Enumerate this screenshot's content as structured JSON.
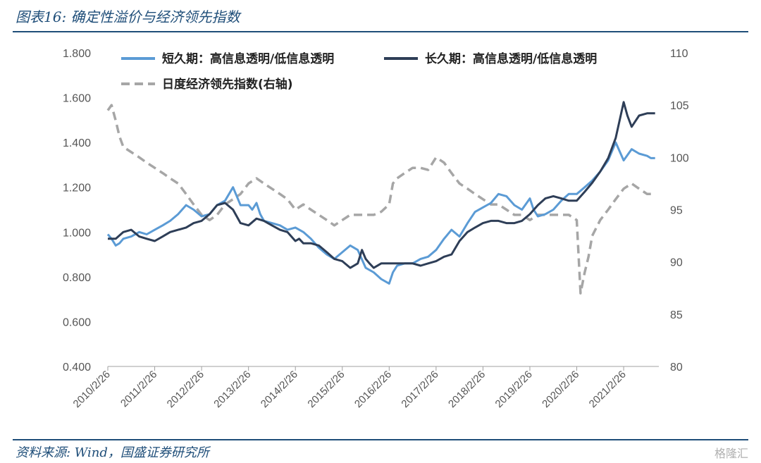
{
  "title": "图表16: 确定性溢价与经济领先指数",
  "source": "资料来源: Wind，国盛证券研究所",
  "watermark": "格隆汇",
  "chart_data": {
    "type": "line",
    "y_left": {
      "min": 0.4,
      "max": 1.8,
      "ticks": [
        "0.400",
        "0.600",
        "0.800",
        "1.000",
        "1.200",
        "1.400",
        "1.600",
        "1.800"
      ]
    },
    "y_right": {
      "min": 80,
      "max": 110,
      "ticks": [
        "80",
        "85",
        "90",
        "95",
        "100",
        "105",
        "110"
      ]
    },
    "x_ticks": [
      "2010/2/26",
      "2011/2/26",
      "2012/2/26",
      "2013/2/26",
      "2014/2/26",
      "2015/2/26",
      "2016/2/26",
      "2017/2/26",
      "2018/2/26",
      "2019/2/26",
      "2020/2/26",
      "2021/2/26"
    ],
    "x_range": [
      2010.0,
      2021.75
    ],
    "grid": false,
    "legend_position": "top",
    "series": [
      {
        "name": "短久期：高信息透明/低信息透明",
        "axis": "left",
        "color": "#5b9bd5",
        "style": "solid",
        "x": [
          2010.0,
          2010.08,
          2010.17,
          2010.25,
          2010.33,
          2010.5,
          2010.67,
          2010.83,
          2011.0,
          2011.17,
          2011.33,
          2011.5,
          2011.67,
          2011.83,
          2012.0,
          2012.17,
          2012.33,
          2012.5,
          2012.67,
          2012.83,
          2013.0,
          2013.08,
          2013.17,
          2013.25,
          2013.33,
          2013.5,
          2013.67,
          2013.83,
          2014.0,
          2014.17,
          2014.33,
          2014.5,
          2014.67,
          2014.83,
          2015.0,
          2015.17,
          2015.33,
          2015.5,
          2015.67,
          2015.83,
          2016.0,
          2016.08,
          2016.17,
          2016.33,
          2016.5,
          2016.67,
          2016.83,
          2017.0,
          2017.17,
          2017.33,
          2017.5,
          2017.67,
          2017.83,
          2018.0,
          2018.17,
          2018.33,
          2018.5,
          2018.67,
          2018.83,
          2019.0,
          2019.08,
          2019.17,
          2019.33,
          2019.5,
          2019.67,
          2019.83,
          2020.0,
          2020.17,
          2020.33,
          2020.5,
          2020.67,
          2020.83,
          2021.0,
          2021.17,
          2021.33,
          2021.5,
          2021.58,
          2021.67
        ],
        "values": [
          0.99,
          0.97,
          0.94,
          0.95,
          0.97,
          0.98,
          1.0,
          0.99,
          1.01,
          1.03,
          1.05,
          1.08,
          1.12,
          1.1,
          1.07,
          1.08,
          1.12,
          1.14,
          1.2,
          1.12,
          1.12,
          1.1,
          1.13,
          1.08,
          1.05,
          1.04,
          1.03,
          1.01,
          1.02,
          1.0,
          0.97,
          0.93,
          0.9,
          0.88,
          0.91,
          0.94,
          0.92,
          0.84,
          0.82,
          0.79,
          0.77,
          0.82,
          0.85,
          0.86,
          0.86,
          0.88,
          0.89,
          0.92,
          0.97,
          1.01,
          0.98,
          1.04,
          1.09,
          1.11,
          1.13,
          1.17,
          1.16,
          1.12,
          1.1,
          1.15,
          1.1,
          1.07,
          1.08,
          1.1,
          1.14,
          1.17,
          1.17,
          1.2,
          1.23,
          1.27,
          1.32,
          1.4,
          1.32,
          1.37,
          1.35,
          1.34,
          1.33,
          1.33
        ]
      },
      {
        "name": "长久期：高信息透明/低信息透明",
        "axis": "left",
        "color": "#2e3e57",
        "style": "solid",
        "x": [
          2010.0,
          2010.17,
          2010.33,
          2010.5,
          2010.67,
          2010.83,
          2011.0,
          2011.17,
          2011.33,
          2011.5,
          2011.67,
          2011.83,
          2012.0,
          2012.17,
          2012.33,
          2012.5,
          2012.67,
          2012.83,
          2013.0,
          2013.17,
          2013.33,
          2013.5,
          2013.67,
          2013.83,
          2014.0,
          2014.08,
          2014.17,
          2014.33,
          2014.5,
          2014.67,
          2014.83,
          2015.0,
          2015.17,
          2015.33,
          2015.42,
          2015.5,
          2015.58,
          2015.67,
          2015.83,
          2016.0,
          2016.17,
          2016.33,
          2016.5,
          2016.67,
          2016.83,
          2017.0,
          2017.17,
          2017.33,
          2017.5,
          2017.67,
          2017.83,
          2018.0,
          2018.17,
          2018.33,
          2018.5,
          2018.67,
          2018.83,
          2019.0,
          2019.17,
          2019.33,
          2019.5,
          2019.67,
          2019.83,
          2020.0,
          2020.17,
          2020.33,
          2020.5,
          2020.67,
          2020.83,
          2021.0,
          2021.08,
          2021.17,
          2021.33,
          2021.5,
          2021.58,
          2021.67
        ],
        "values": [
          0.97,
          0.97,
          1.0,
          1.01,
          0.98,
          0.97,
          0.96,
          0.98,
          1.0,
          1.01,
          1.02,
          1.04,
          1.05,
          1.08,
          1.12,
          1.13,
          1.1,
          1.04,
          1.03,
          1.06,
          1.05,
          1.03,
          1.01,
          1.0,
          0.96,
          0.97,
          0.95,
          0.95,
          0.94,
          0.91,
          0.88,
          0.87,
          0.84,
          0.86,
          0.92,
          0.88,
          0.86,
          0.84,
          0.86,
          0.86,
          0.86,
          0.86,
          0.86,
          0.85,
          0.86,
          0.87,
          0.89,
          0.9,
          0.96,
          1.0,
          1.02,
          1.04,
          1.05,
          1.05,
          1.04,
          1.04,
          1.05,
          1.08,
          1.12,
          1.15,
          1.16,
          1.15,
          1.14,
          1.14,
          1.18,
          1.22,
          1.27,
          1.33,
          1.42,
          1.58,
          1.52,
          1.47,
          1.52,
          1.53,
          1.53,
          1.53
        ]
      },
      {
        "name": "日度经济领先指数(右轴)",
        "axis": "right",
        "color": "#a6a6a6",
        "style": "dashed",
        "x": [
          2010.0,
          2010.08,
          2010.17,
          2010.25,
          2010.33,
          2010.5,
          2010.67,
          2010.83,
          2011.0,
          2011.17,
          2011.33,
          2011.5,
          2011.67,
          2011.83,
          2012.0,
          2012.17,
          2012.33,
          2012.5,
          2012.67,
          2012.83,
          2013.0,
          2013.17,
          2013.33,
          2013.5,
          2013.67,
          2013.83,
          2014.0,
          2014.17,
          2014.33,
          2014.5,
          2014.67,
          2014.83,
          2015.0,
          2015.17,
          2015.33,
          2015.5,
          2015.67,
          2015.83,
          2016.0,
          2016.08,
          2016.17,
          2016.33,
          2016.5,
          2016.67,
          2016.83,
          2017.0,
          2017.17,
          2017.33,
          2017.5,
          2017.67,
          2017.83,
          2018.0,
          2018.17,
          2018.33,
          2018.5,
          2018.67,
          2018.83,
          2019.0,
          2019.17,
          2019.33,
          2019.5,
          2019.67,
          2019.83,
          2020.0,
          2020.08,
          2020.17,
          2020.25,
          2020.33,
          2020.5,
          2020.67,
          2020.83,
          2021.0,
          2021.17,
          2021.33,
          2021.5,
          2021.67
        ],
        "values": [
          104.5,
          105.0,
          103.5,
          102.0,
          101.0,
          100.5,
          100.0,
          99.5,
          99.0,
          98.5,
          98.0,
          97.5,
          96.5,
          95.5,
          94.5,
          94.0,
          94.5,
          95.5,
          96.0,
          96.5,
          97.5,
          98.0,
          97.5,
          97.0,
          96.5,
          96.0,
          95.0,
          95.5,
          95.0,
          94.5,
          94.0,
          93.5,
          94.0,
          94.5,
          94.5,
          94.5,
          94.5,
          94.8,
          95.5,
          97.5,
          98.0,
          98.5,
          99.0,
          99.0,
          98.8,
          100.0,
          99.5,
          98.5,
          97.5,
          97.0,
          96.5,
          96.0,
          95.5,
          95.5,
          95.0,
          94.5,
          94.5,
          94.0,
          94.5,
          94.5,
          94.5,
          94.5,
          94.5,
          94.0,
          87.0,
          89.0,
          90.5,
          92.5,
          94.0,
          95.0,
          96.0,
          97.0,
          97.5,
          97.0,
          96.5,
          96.5
        ]
      }
    ]
  }
}
